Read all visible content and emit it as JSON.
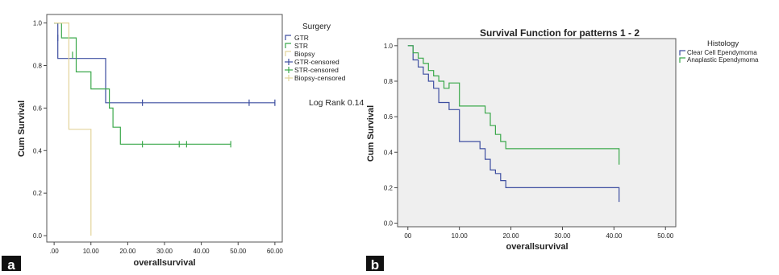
{
  "panel_labels": {
    "a": "a",
    "b": "b"
  },
  "annotations": {
    "log_rank": "Log Rank 0.14"
  },
  "colors": {
    "series1": "#3d4ea0",
    "series2": "#3aa84a",
    "series3": "#e3d49a",
    "plot_bg_b": "#efefef",
    "axis": "#444444"
  },
  "chart_data": [
    {
      "type": "line",
      "step": true,
      "title": "",
      "xlabel": "overallsurvival",
      "ylabel": "Cum Survival",
      "xlim": [
        -2,
        62
      ],
      "ylim": [
        -0.03,
        1.04
      ],
      "xticks": [
        0,
        10,
        20,
        30,
        40,
        50,
        60
      ],
      "xtick_labels": [
        ".00",
        "10.00",
        "20.00",
        "30.00",
        "40.00",
        "50.00",
        "60.00"
      ],
      "yticks": [
        0,
        0.2,
        0.4,
        0.6,
        0.8,
        1.0
      ],
      "ytick_labels": [
        "0.0",
        "0.2",
        "0.4",
        "0.6",
        "0.8",
        "1.0"
      ],
      "grid": false,
      "legend_title": "Surgery",
      "legend_position": "right",
      "legend_items": [
        "GTR",
        "STR",
        "Biopsy",
        "GTR-censored",
        "STR-censored",
        "Biopsy-censored"
      ],
      "series": [
        {
          "name": "GTR",
          "color": "#3d4ea0",
          "x": [
            0,
            1,
            1,
            14,
            14,
            60
          ],
          "y": [
            1.0,
            1.0,
            0.833,
            0.833,
            0.625,
            0.625
          ],
          "censored_x": [
            1,
            24,
            53,
            60
          ],
          "censored_y": [
            0.93,
            0.625,
            0.625,
            0.625
          ]
        },
        {
          "name": "STR",
          "color": "#3aa84a",
          "x": [
            0,
            2,
            2,
            6,
            6,
            10,
            10,
            15,
            15,
            16,
            16,
            18,
            18,
            48
          ],
          "y": [
            1.0,
            1.0,
            0.93,
            0.93,
            0.77,
            0.77,
            0.69,
            0.69,
            0.6,
            0.6,
            0.51,
            0.51,
            0.43,
            0.43
          ],
          "censored_x": [
            5,
            24,
            34,
            36,
            48
          ],
          "censored_y": [
            0.85,
            0.43,
            0.43,
            0.43,
            0.43
          ]
        },
        {
          "name": "Biopsy",
          "color": "#e3d49a",
          "x": [
            0,
            4,
            4,
            10,
            10
          ],
          "y": [
            1.0,
            1.0,
            0.5,
            0.5,
            0.0
          ],
          "censored_x": [],
          "censored_y": []
        }
      ]
    },
    {
      "type": "line",
      "step": true,
      "title": "Survival Function for patterns 1 - 2",
      "xlabel": "overallsurvival",
      "ylabel": "Cum Survival",
      "xlim": [
        -2,
        52
      ],
      "ylim": [
        -0.02,
        1.04
      ],
      "xticks": [
        0,
        10,
        20,
        30,
        40,
        50
      ],
      "xtick_labels": [
        "00",
        "10.00",
        "20.00",
        "30.00",
        "40.00",
        "50.00"
      ],
      "yticks": [
        0,
        0.2,
        0.4,
        0.6,
        0.8,
        1.0
      ],
      "ytick_labels": [
        "0.0",
        "0.2",
        "0.4",
        "0.6",
        "0.8",
        "1.0"
      ],
      "grid": false,
      "legend_title": "Histology",
      "legend_position": "right",
      "series": [
        {
          "name": "Clear Cell Ependymoma",
          "color": "#3d4ea0",
          "x": [
            0,
            1,
            1,
            2,
            2,
            3,
            3,
            4,
            4,
            5,
            5,
            6,
            6,
            8,
            8,
            10,
            10,
            14,
            14,
            15,
            15,
            16,
            16,
            17,
            17,
            18,
            18,
            19,
            19,
            41,
            41
          ],
          "y": [
            1.0,
            1.0,
            0.92,
            0.92,
            0.88,
            0.88,
            0.84,
            0.84,
            0.8,
            0.8,
            0.76,
            0.76,
            0.68,
            0.68,
            0.64,
            0.64,
            0.46,
            0.46,
            0.42,
            0.42,
            0.36,
            0.36,
            0.3,
            0.3,
            0.28,
            0.28,
            0.24,
            0.24,
            0.2,
            0.2,
            0.12
          ]
        },
        {
          "name": "Anaplastic Ependymoma",
          "color": "#3aa84a",
          "x": [
            0,
            1,
            1,
            2,
            2,
            3,
            3,
            4,
            4,
            5,
            5,
            6,
            6,
            7,
            7,
            8,
            8,
            10,
            10,
            15,
            15,
            16,
            16,
            17,
            17,
            18,
            18,
            19,
            19,
            41,
            41
          ],
          "y": [
            1.0,
            1.0,
            0.96,
            0.96,
            0.93,
            0.93,
            0.9,
            0.9,
            0.86,
            0.86,
            0.83,
            0.83,
            0.8,
            0.8,
            0.76,
            0.76,
            0.79,
            0.79,
            0.66,
            0.66,
            0.62,
            0.62,
            0.55,
            0.55,
            0.5,
            0.5,
            0.46,
            0.46,
            0.42,
            0.42,
            0.33
          ]
        }
      ]
    }
  ]
}
